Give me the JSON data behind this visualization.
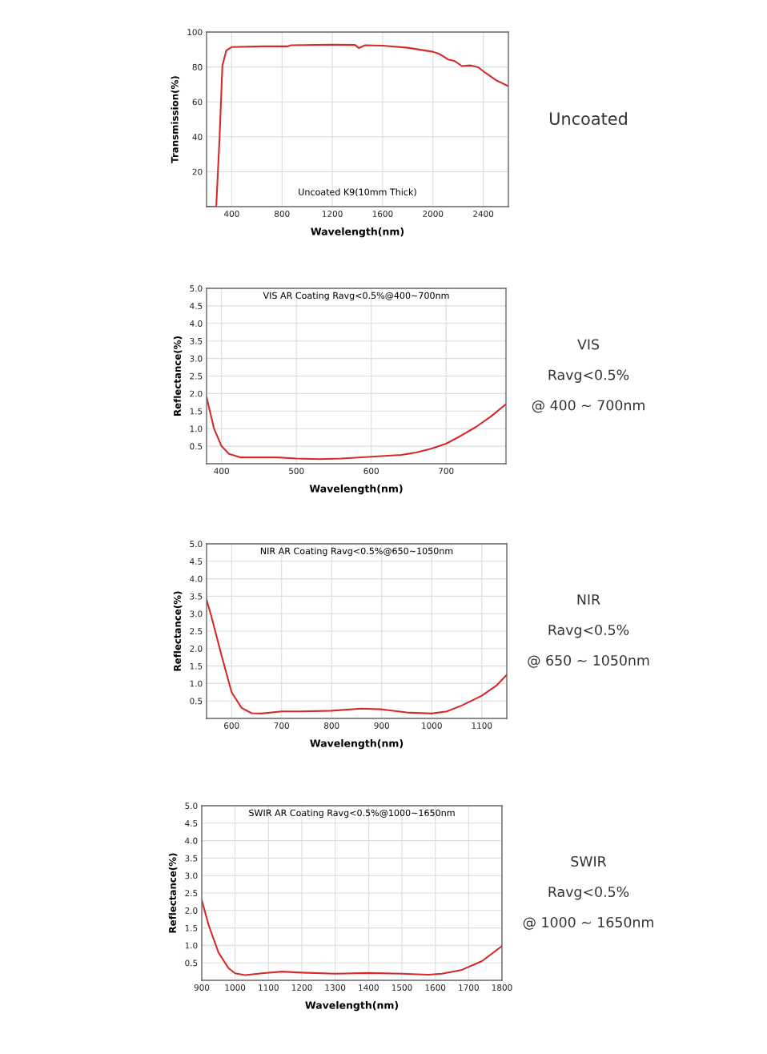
{
  "chart_data": [
    {
      "type": "line",
      "title": "Uncoated K9(10mm Thick)",
      "xlabel": "Wavelength(nm)",
      "ylabel": "Transmission(%)",
      "x": [
        200,
        277,
        304,
        326,
        357,
        400,
        650,
        847,
        870,
        1200,
        1380,
        1410,
        1460,
        1600,
        1800,
        2000,
        2050,
        2120,
        2170,
        2230,
        2300,
        2360,
        2420,
        2500,
        2600
      ],
      "series": [
        {
          "color": "#d42a2a",
          "values": [
            0,
            0,
            40.5,
            80.7,
            89.4,
            91.4,
            91.8,
            91.8,
            92.4,
            92.7,
            92.6,
            90.8,
            92.4,
            92.2,
            91,
            88.7,
            87.5,
            84.3,
            83.5,
            80.5,
            80.9,
            79.8,
            76.5,
            72.5,
            69
          ]
        }
      ],
      "xlim": [
        200,
        2600
      ],
      "xticks": [
        400,
        800,
        1200,
        1600,
        2000,
        2400
      ],
      "ylim": [
        0,
        100
      ],
      "yticks": [
        20,
        40,
        60,
        80,
        100
      ],
      "grid": true,
      "marker": "none",
      "line_style": "solid",
      "annotations": [
        "Uncoated"
      ]
    },
    {
      "type": "line",
      "title": "VIS AR Coating Ravg<0.5%@400~700nm",
      "xlabel": "Wavelength(nm)",
      "ylabel": "Reflectance(%)",
      "x": [
        380,
        390,
        400,
        410,
        425,
        450,
        475,
        500,
        530,
        560,
        600,
        640,
        660,
        680,
        700,
        720,
        740,
        760,
        780
      ],
      "series": [
        {
          "color": "#d42a2a",
          "values": [
            1.9,
            1.0,
            0.5,
            0.28,
            0.18,
            0.18,
            0.18,
            0.15,
            0.13,
            0.15,
            0.2,
            0.25,
            0.32,
            0.43,
            0.57,
            0.8,
            1.05,
            1.35,
            1.7
          ]
        }
      ],
      "xlim": [
        380,
        780
      ],
      "xticks": [
        400,
        500,
        600,
        700
      ],
      "ylim": [
        0,
        5
      ],
      "yticks": [
        0.5,
        {
          "value": 1,
          "label": "1.0"
        },
        1.5,
        {
          "value": 2,
          "label": "2.0"
        },
        2.5,
        {
          "value": 3,
          "label": "3.0"
        },
        3.5,
        {
          "value": 4,
          "label": "4.0"
        },
        4.5,
        {
          "value": 5,
          "label": "5.0"
        }
      ],
      "grid": true,
      "marker": "none",
      "line_style": "solid",
      "annotations": [
        "VIS",
        "Ravg<0.5%",
        "@ 400 ~ 700nm"
      ]
    },
    {
      "type": "line",
      "title": "NIR AR Coating Ravg<0.5%@650~1050nm",
      "xlabel": "Wavelength(nm)",
      "ylabel": "Reflectance(%)",
      "x": [
        550,
        560,
        580,
        600,
        620,
        640,
        660,
        700,
        740,
        800,
        860,
        900,
        950,
        1000,
        1030,
        1060,
        1100,
        1130,
        1150
      ],
      "series": [
        {
          "color": "#d42a2a",
          "values": [
            3.4,
            2.9,
            1.8,
            0.75,
            0.3,
            0.15,
            0.14,
            0.2,
            0.2,
            0.22,
            0.28,
            0.26,
            0.17,
            0.14,
            0.2,
            0.37,
            0.65,
            0.95,
            1.25
          ]
        }
      ],
      "xlim": [
        550,
        1150
      ],
      "xticks": [
        600,
        700,
        800,
        900,
        1000,
        1100
      ],
      "ylim": [
        0,
        5
      ],
      "yticks": [
        0.5,
        {
          "value": 1,
          "label": "1.0"
        },
        1.5,
        {
          "value": 2,
          "label": "2.0"
        },
        2.5,
        {
          "value": 3,
          "label": "3.0"
        },
        3.5,
        {
          "value": 4,
          "label": "4.0"
        },
        4.5,
        {
          "value": 5,
          "label": "5.0"
        }
      ],
      "grid": true,
      "marker": "none",
      "line_style": "solid",
      "annotations": [
        "NIR",
        "Ravg<0.5%",
        "@ 650 ~ 1050nm"
      ]
    },
    {
      "type": "line",
      "title": "SWIR AR Coating Ravg<0.5%@1000~1650nm",
      "xlabel": "Wavelength(nm)",
      "ylabel": "Reflectance(%)",
      "x": [
        900,
        920,
        950,
        980,
        1000,
        1030,
        1080,
        1140,
        1200,
        1300,
        1400,
        1500,
        1580,
        1620,
        1680,
        1740,
        1800
      ],
      "series": [
        {
          "color": "#d42a2a",
          "values": [
            2.3,
            1.6,
            0.8,
            0.35,
            0.2,
            0.15,
            0.2,
            0.25,
            0.22,
            0.19,
            0.21,
            0.19,
            0.16,
            0.19,
            0.3,
            0.55,
            0.98
          ]
        }
      ],
      "xlim": [
        900,
        1800
      ],
      "xticks": [
        900,
        1000,
        1100,
        1200,
        1300,
        1400,
        1500,
        1600,
        1700,
        1800
      ],
      "ylim": [
        0,
        5
      ],
      "yticks": [
        0.5,
        {
          "value": 1,
          "label": "1.0"
        },
        1.5,
        {
          "value": 2,
          "label": "2.0"
        },
        2.5,
        {
          "value": 3,
          "label": "3.0"
        },
        3.5,
        {
          "value": 4,
          "label": "4.0"
        },
        4.5,
        {
          "value": 5,
          "label": "5.0"
        }
      ],
      "grid": true,
      "marker": "none",
      "line_style": "solid",
      "annotations": [
        "SWIR",
        "Ravg<0.5%",
        "@ 1000 ~ 1650nm"
      ]
    }
  ]
}
